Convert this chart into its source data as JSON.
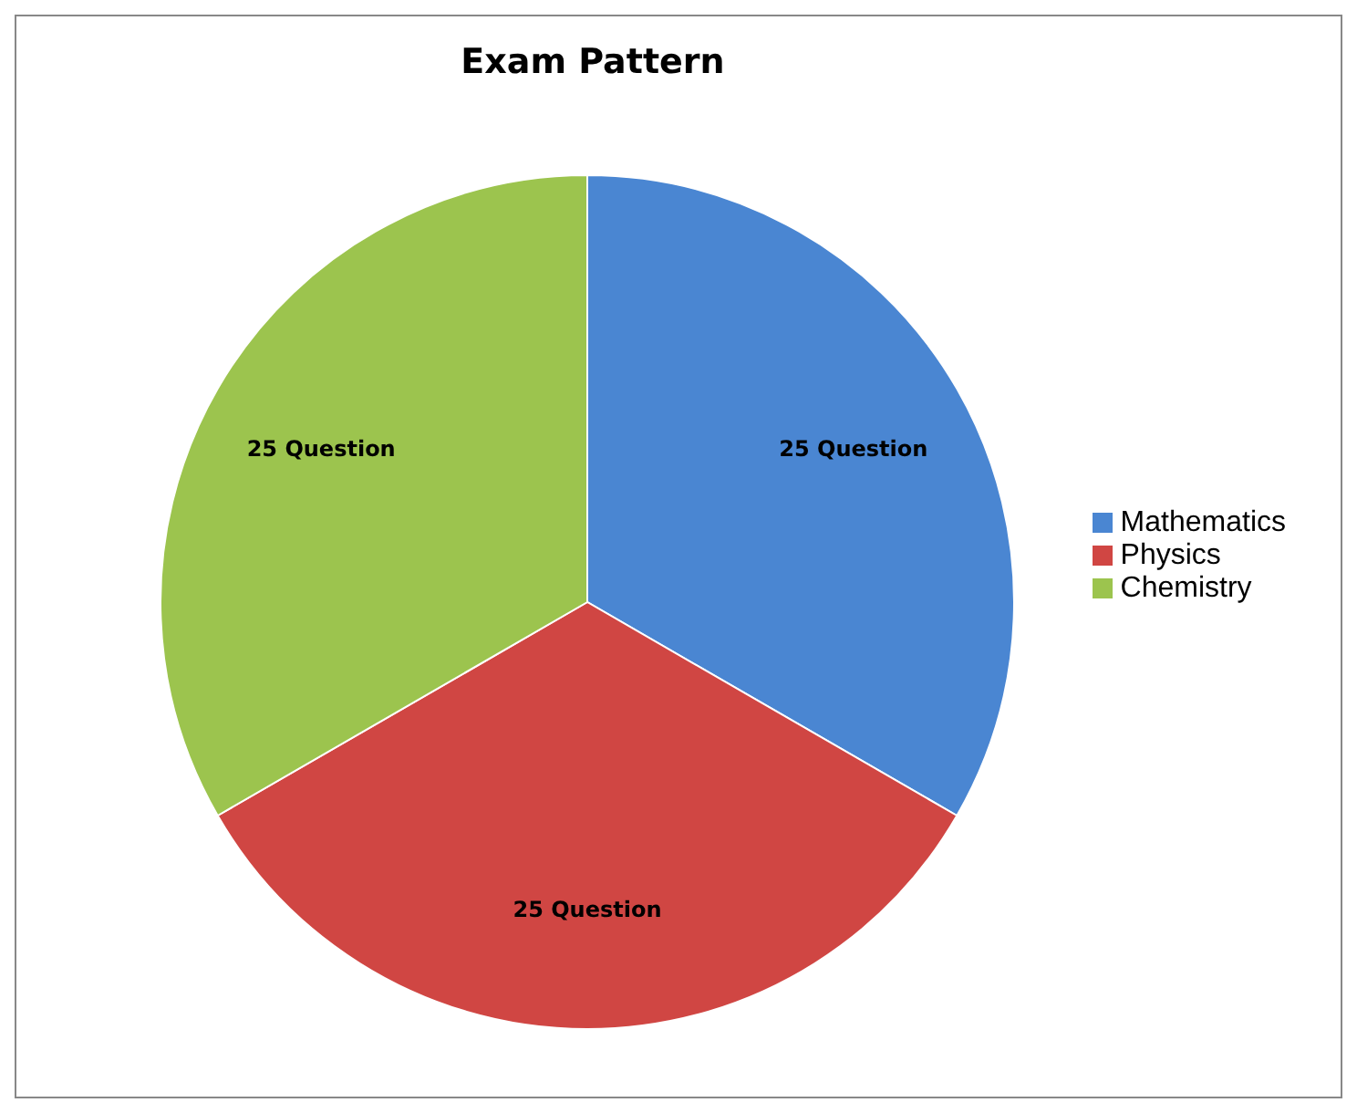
{
  "chart_data": {
    "type": "pie",
    "title": "Exam Pattern",
    "categories": [
      "Mathematics",
      "Physics",
      "Chemistry"
    ],
    "values": [
      25,
      25,
      25
    ],
    "value_labels": [
      "25 Question",
      "25 Question",
      "25 Question"
    ],
    "colors": [
      "#4a86d2",
      "#d04643",
      "#9cc44e"
    ],
    "legend": "right"
  }
}
